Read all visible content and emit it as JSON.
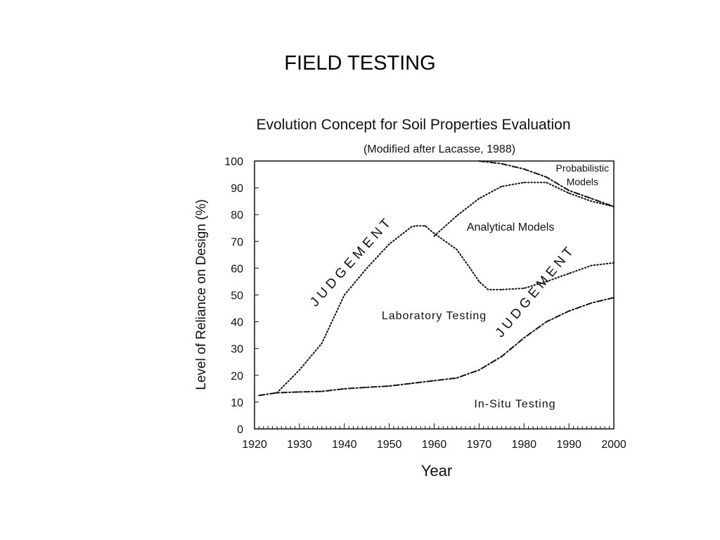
{
  "slide": {
    "title": "FIELD TESTING"
  },
  "chart_data": {
    "type": "line",
    "title": "Evolution Concept for Soil Properties Evaluation",
    "subtitle": "(Modified after Lacasse, 1988)",
    "xlabel": "Year",
    "ylabel": "Level of Reliance on Design  (%)",
    "xlim": [
      1920,
      2000
    ],
    "ylim": [
      0,
      100
    ],
    "x_ticks": [
      1920,
      1930,
      1940,
      1950,
      1960,
      1970,
      1980,
      1990,
      2000
    ],
    "y_ticks": [
      0,
      10,
      20,
      30,
      40,
      50,
      60,
      70,
      80,
      90,
      100
    ],
    "grid": false,
    "series": [
      {
        "style": "dash-dot",
        "x": [
          1921,
          1925,
          1930,
          1935,
          1940,
          1945,
          1950,
          1955,
          1960,
          1965,
          1970,
          1975,
          1980,
          1985,
          1990,
          1995,
          2000
        ],
        "y": [
          12.5,
          13.5,
          13.8,
          14,
          15,
          15.5,
          16,
          17,
          18,
          19,
          22,
          27,
          34,
          40,
          44,
          47,
          49
        ]
      },
      {
        "style": "dotted",
        "x": [
          1925,
          1930,
          1935,
          1940,
          1945,
          1950,
          1955,
          1956,
          1958,
          1960,
          1965,
          1968,
          1970,
          1972,
          1975,
          1980,
          1985,
          1990,
          1995,
          2000
        ],
        "y": [
          13.5,
          22,
          32,
          50,
          60,
          69,
          75.5,
          75.8,
          75.8,
          73,
          67,
          60,
          55,
          52,
          52,
          52.5,
          55,
          58,
          61,
          62
        ]
      },
      {
        "style": "dotted",
        "x": [
          1960,
          1965,
          1970,
          1975,
          1980,
          1985,
          1990,
          1995,
          2000
        ],
        "y": [
          72,
          79.5,
          86,
          90.5,
          92,
          92,
          88,
          85,
          83
        ]
      },
      {
        "style": "dash-dot",
        "x": [
          1970,
          1975,
          1980,
          1985,
          1990,
          1995,
          2000
        ],
        "y": [
          100,
          99,
          97,
          94,
          89,
          86,
          83
        ]
      }
    ],
    "annotations": [
      {
        "text": "Probabilistic",
        "x": 1993,
        "y": 96
      },
      {
        "text": "Models",
        "x": 1993,
        "y": 91
      },
      {
        "text": "Analytical Models",
        "x": 1977,
        "y": 74
      },
      {
        "text": "Laboratory Testing",
        "x": 1960,
        "y": 41
      },
      {
        "text": "In-Situ Testing",
        "x": 1978,
        "y": 8
      },
      {
        "text": "J U D G E M E N T",
        "x": 1942,
        "y": 61,
        "angle": -48
      },
      {
        "text": "J U D G E M E N T",
        "x": 1983,
        "y": 50,
        "angle": -50
      }
    ]
  }
}
